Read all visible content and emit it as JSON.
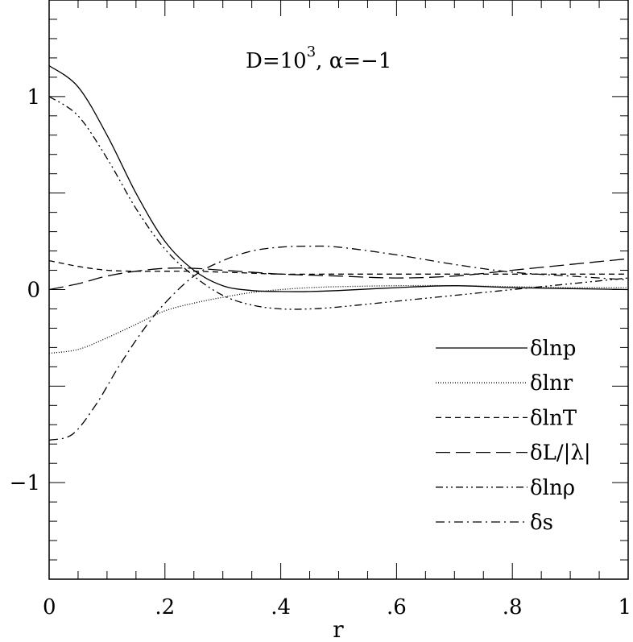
{
  "chart_data": {
    "type": "line",
    "annotation": {
      "base": "D=10",
      "exp": "3",
      "rest": ",  α=−1"
    },
    "xlabel": "r",
    "ylabel": "",
    "xlim": [
      0,
      1
    ],
    "ylim": [
      -1.5,
      1.5
    ],
    "grid": false,
    "legend_position": "lower-right",
    "x_ticks": [
      {
        "v": 0,
        "label": "0"
      },
      {
        "v": 0.2,
        "label": ".2"
      },
      {
        "v": 0.4,
        "label": ".4"
      },
      {
        "v": 0.6,
        "label": ".6"
      },
      {
        "v": 0.8,
        "label": ".8"
      },
      {
        "v": 1,
        "label": "1"
      }
    ],
    "y_ticks": [
      {
        "v": 1,
        "label": "1"
      },
      {
        "v": 0,
        "label": "0"
      },
      {
        "v": -1,
        "label": "−1"
      }
    ],
    "series": [
      {
        "name": "δlnp",
        "dash": "none",
        "x": [
          0,
          0.05,
          0.1,
          0.15,
          0.2,
          0.25,
          0.3,
          0.35,
          0.4,
          0.45,
          0.5,
          0.6,
          0.7,
          0.8,
          0.9,
          1.0
        ],
        "y": [
          1.16,
          1.05,
          0.8,
          0.5,
          0.25,
          0.1,
          0.02,
          -0.005,
          -0.01,
          -0.01,
          -0.005,
          0.01,
          0.02,
          0.01,
          0.005,
          0
        ]
      },
      {
        "name": "δlnr",
        "dash": "1,2",
        "x": [
          0,
          0.05,
          0.1,
          0.15,
          0.2,
          0.25,
          0.3,
          0.35,
          0.4,
          0.45,
          0.5,
          0.6,
          0.7,
          0.8,
          0.9,
          1.0
        ],
        "y": [
          -0.33,
          -0.31,
          -0.25,
          -0.18,
          -0.11,
          -0.07,
          -0.04,
          -0.015,
          0,
          0.01,
          0.015,
          0.02,
          0.02,
          0.015,
          0.01,
          0.01
        ]
      },
      {
        "name": "δlnT",
        "dash": "7,5",
        "x": [
          0,
          0.05,
          0.1,
          0.15,
          0.2,
          0.25,
          0.3,
          0.35,
          0.4,
          0.5,
          0.6,
          0.7,
          0.8,
          0.9,
          1.0
        ],
        "y": [
          0.15,
          0.12,
          0.1,
          0.095,
          0.095,
          0.095,
          0.09,
          0.085,
          0.08,
          0.08,
          0.08,
          0.08,
          0.08,
          0.08,
          0.08
        ]
      },
      {
        "name": "δL/|λ|",
        "dash": "18,7",
        "x": [
          0,
          0.05,
          0.1,
          0.15,
          0.2,
          0.25,
          0.3,
          0.35,
          0.4,
          0.5,
          0.6,
          0.7,
          0.8,
          0.9,
          1.0
        ],
        "y": [
          0,
          0.03,
          0.07,
          0.095,
          0.11,
          0.11,
          0.1,
          0.09,
          0.08,
          0.07,
          0.06,
          0.07,
          0.1,
          0.13,
          0.16
        ]
      },
      {
        "name": "δlnρ",
        "dash": "9,4,2,4,2,4",
        "x": [
          0,
          0.05,
          0.1,
          0.15,
          0.2,
          0.25,
          0.3,
          0.35,
          0.4,
          0.45,
          0.5,
          0.6,
          0.7,
          0.8,
          0.9,
          1.0
        ],
        "y": [
          1.0,
          0.9,
          0.68,
          0.42,
          0.21,
          0.07,
          -0.03,
          -0.08,
          -0.1,
          -0.1,
          -0.09,
          -0.06,
          -0.03,
          0,
          0.03,
          0.06
        ]
      },
      {
        "name": "δs",
        "dash": "11,5,2,5",
        "x": [
          0,
          0.04,
          0.08,
          0.12,
          0.16,
          0.2,
          0.25,
          0.3,
          0.35,
          0.4,
          0.45,
          0.5,
          0.6,
          0.7,
          0.8,
          0.9,
          1.0
        ],
        "y": [
          -0.78,
          -0.75,
          -0.6,
          -0.4,
          -0.22,
          -0.07,
          0.07,
          0.15,
          0.2,
          0.22,
          0.225,
          0.22,
          0.18,
          0.13,
          0.09,
          0.07,
          0.05
        ]
      }
    ]
  }
}
